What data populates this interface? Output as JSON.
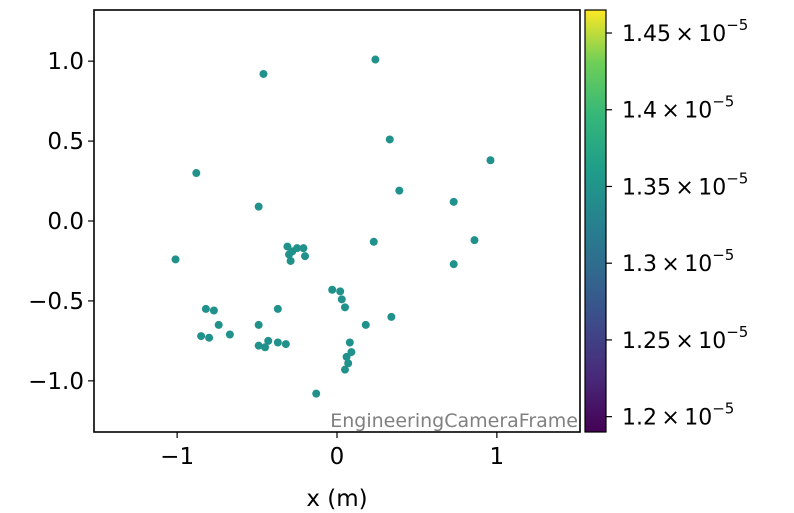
{
  "chart_data": {
    "type": "scatter",
    "xlabel": "x  (m)",
    "ylabel": "",
    "xlim": [
      -1.52,
      1.52
    ],
    "ylim": [
      -1.32,
      1.32
    ],
    "xticks": [
      -1,
      0,
      1
    ],
    "xtick_labels": [
      "−1",
      "0",
      "1"
    ],
    "yticks": [
      -1.0,
      -0.5,
      0.0,
      0.5,
      1.0
    ],
    "ytick_labels": [
      "−1.0",
      "−0.5",
      "0.0",
      "0.5",
      "1.0"
    ],
    "grid": false,
    "annotation": "EngineeringCameraFrame",
    "point_color": "#21918c",
    "colorbar": {
      "range": [
        1.19e-05,
        1.465e-05
      ],
      "ticks": [
        1.2e-05,
        1.25e-05,
        1.3e-05,
        1.35e-05,
        1.4e-05,
        1.45e-05
      ],
      "tick_mantissas": [
        "1.2",
        "1.25",
        "1.3",
        "1.35",
        "1.4",
        "1.45"
      ],
      "tick_times": "×",
      "tick_base": "10",
      "tick_exponent": "−5",
      "colormap": "viridis"
    },
    "points": [
      [
        -0.46,
        0.92
      ],
      [
        0.24,
        1.01
      ],
      [
        0.33,
        0.51
      ],
      [
        0.96,
        0.38
      ],
      [
        -0.88,
        0.3
      ],
      [
        0.39,
        0.19
      ],
      [
        0.73,
        0.12
      ],
      [
        -0.49,
        0.09
      ],
      [
        0.23,
        -0.13
      ],
      [
        0.86,
        -0.12
      ],
      [
        -1.01,
        -0.24
      ],
      [
        0.73,
        -0.27
      ],
      [
        -0.31,
        -0.16
      ],
      [
        -0.28,
        -0.19
      ],
      [
        -0.25,
        -0.17
      ],
      [
        -0.21,
        -0.17
      ],
      [
        -0.3,
        -0.21
      ],
      [
        -0.29,
        -0.25
      ],
      [
        -0.2,
        -0.22
      ],
      [
        -0.03,
        -0.43
      ],
      [
        0.02,
        -0.44
      ],
      [
        0.03,
        -0.49
      ],
      [
        0.05,
        -0.54
      ],
      [
        0.34,
        -0.6
      ],
      [
        0.18,
        -0.65
      ],
      [
        -0.82,
        -0.55
      ],
      [
        -0.77,
        -0.56
      ],
      [
        -0.37,
        -0.55
      ],
      [
        -0.74,
        -0.65
      ],
      [
        -0.49,
        -0.65
      ],
      [
        -0.85,
        -0.72
      ],
      [
        -0.8,
        -0.73
      ],
      [
        -0.67,
        -0.71
      ],
      [
        -0.43,
        -0.75
      ],
      [
        -0.37,
        -0.76
      ],
      [
        -0.32,
        -0.77
      ],
      [
        -0.49,
        -0.78
      ],
      [
        -0.45,
        -0.79
      ],
      [
        0.08,
        -0.76
      ],
      [
        0.09,
        -0.82
      ],
      [
        0.06,
        -0.85
      ],
      [
        0.07,
        -0.89
      ],
      [
        0.05,
        -0.93
      ],
      [
        -0.13,
        -1.08
      ]
    ]
  }
}
